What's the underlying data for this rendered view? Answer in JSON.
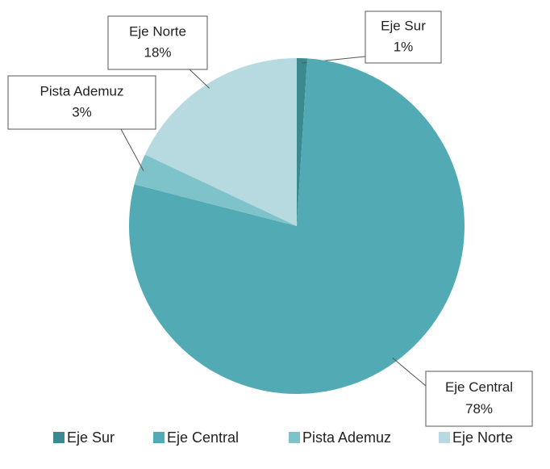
{
  "chart_data": {
    "type": "pie",
    "categories": [
      "Eje Sur",
      "Eje Central",
      "Pista Ademuz",
      "Eje Norte"
    ],
    "values": [
      1,
      78,
      3,
      18
    ],
    "value_labels": [
      "1%",
      "78%",
      "3%",
      "18%"
    ],
    "colors": [
      "#3a8a90",
      "#52abb4",
      "#7ec3ca",
      "#b7dae0"
    ],
    "legend": "bottom"
  }
}
